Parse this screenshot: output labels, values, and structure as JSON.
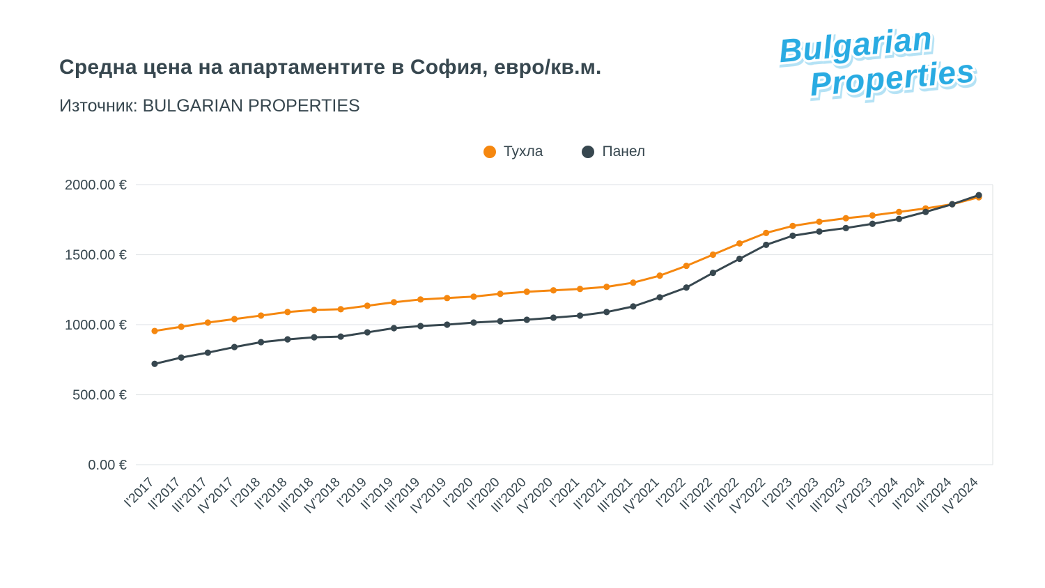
{
  "header": {
    "title": "Средна цена на апартаментите в София, евро/кв.м.",
    "source": "Източник: BULGARIAN PROPERTIES"
  },
  "logo": {
    "line1": "Bulgarian",
    "line2": "Properties",
    "color": "#29abe2"
  },
  "legend": {
    "items": [
      {
        "label": "Тухла",
        "color": "#f5870f"
      },
      {
        "label": "Панел",
        "color": "#37474f"
      }
    ]
  },
  "chart_data": {
    "type": "line",
    "title": "Средна цена на апартаментите в София, евро/кв.м.",
    "xlabel": "",
    "ylabel": "евро/кв.м.",
    "ylim": [
      0,
      2000
    ],
    "grid": true,
    "legend_position": "top-center",
    "yticks": [
      0,
      500,
      1000,
      1500,
      2000
    ],
    "ytick_labels": [
      "0.00 €",
      "500.00 €",
      "1000.00 €",
      "1500.00 €",
      "2000.00 €"
    ],
    "categories": [
      "I'2017",
      "II'2017",
      "III'2017",
      "IV'2017",
      "I'2018",
      "II'2018",
      "III'2018",
      "IV'2018",
      "I'2019",
      "II'2019",
      "III'2019",
      "IV'2019",
      "I'2020",
      "II'2020",
      "III'2020",
      "IV'2020",
      "I'2021",
      "II'2021",
      "III'2021",
      "IV'2021",
      "I'2022",
      "II'2022",
      "III'2022",
      "IV'2022",
      "I'2023",
      "II'2023",
      "III'2023",
      "IV'2023",
      "I'2024",
      "II'2024",
      "III'2024",
      "IV'2024"
    ],
    "series": [
      {
        "name": "Тухла",
        "color": "#f5870f",
        "values": [
          955,
          985,
          1015,
          1040,
          1065,
          1090,
          1105,
          1110,
          1135,
          1160,
          1180,
          1190,
          1200,
          1220,
          1235,
          1245,
          1255,
          1270,
          1300,
          1350,
          1420,
          1500,
          1580,
          1655,
          1705,
          1735,
          1760,
          1780,
          1805,
          1830,
          1860,
          1910
        ]
      },
      {
        "name": "Панел",
        "color": "#37474f",
        "values": [
          720,
          765,
          800,
          840,
          875,
          895,
          910,
          915,
          945,
          975,
          990,
          1000,
          1015,
          1025,
          1035,
          1050,
          1065,
          1090,
          1130,
          1195,
          1265,
          1370,
          1470,
          1570,
          1635,
          1665,
          1690,
          1720,
          1755,
          1805,
          1860,
          1925
        ]
      }
    ]
  }
}
